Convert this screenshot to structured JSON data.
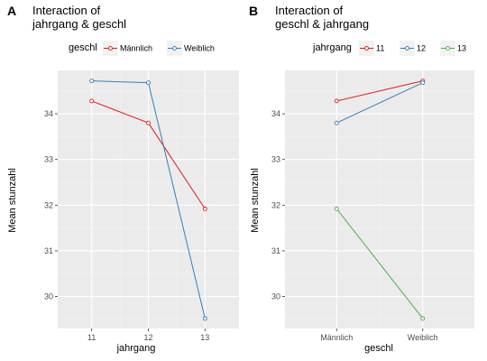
{
  "panels": [
    {
      "tag": "A",
      "title_lines": [
        "Interaction of",
        "jahrgang & geschl"
      ],
      "legend_title": "geschl",
      "legend": [
        {
          "name": "Männlich",
          "color": "#e41a1c"
        },
        {
          "name": "Weiblich",
          "color": "#377eb8"
        }
      ],
      "x_label": "jahrgang",
      "y_label": "Mean stunzahl"
    },
    {
      "tag": "B",
      "title_lines": [
        "Interaction of",
        "geschl & jahrgang"
      ],
      "legend_title": "jahrgang",
      "legend": [
        {
          "name": "11",
          "color": "#e41a1c"
        },
        {
          "name": "12",
          "color": "#377eb8"
        },
        {
          "name": "13",
          "color": "#4daf4a"
        }
      ],
      "x_label": "geschl",
      "y_label": "Mean stunzahl"
    }
  ],
  "chart_data": [
    {
      "type": "line",
      "categories": [
        "11",
        "12",
        "13"
      ],
      "ylim": [
        29.3,
        34.95
      ],
      "yticks": [
        30,
        31,
        32,
        33,
        34
      ],
      "grid": true,
      "legend_position": "top",
      "series": [
        {
          "name": "Männlich",
          "color": "#e41a1c",
          "values": [
            34.28,
            33.8,
            31.92
          ]
        },
        {
          "name": "Weiblich",
          "color": "#377eb8",
          "values": [
            34.72,
            34.68,
            29.52
          ]
        }
      ]
    },
    {
      "type": "line",
      "categories": [
        "Männlich",
        "Weiblich"
      ],
      "ylim": [
        29.3,
        34.95
      ],
      "yticks": [
        30,
        31,
        32,
        33,
        34
      ],
      "grid": true,
      "legend_position": "top",
      "series": [
        {
          "name": "11",
          "color": "#e41a1c",
          "values": [
            34.28,
            34.72
          ]
        },
        {
          "name": "12",
          "color": "#377eb8",
          "values": [
            33.8,
            34.68
          ]
        },
        {
          "name": "13",
          "color": "#4daf4a",
          "values": [
            31.92,
            29.52
          ]
        }
      ]
    }
  ]
}
